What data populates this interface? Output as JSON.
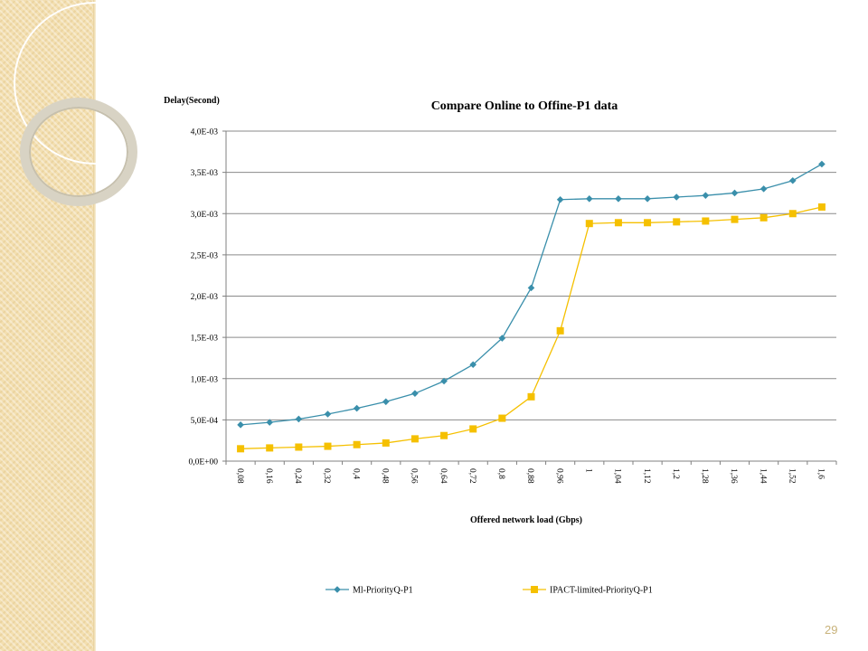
{
  "slide": {
    "page_number": "29"
  },
  "colors": {
    "series1": "#3a8fab",
    "series2": "#f5c000",
    "gridline": "#8a8a8a",
    "axis": "#808080"
  },
  "chart_data": {
    "type": "line",
    "title": "Compare Online to Offine-P1 data",
    "ylabel": "Delay(Second)",
    "xlabel": "Offered network load (Gbps)",
    "ylim": [
      0,
      0.004
    ],
    "yticks": [
      0,
      0.0005,
      0.001,
      0.0015,
      0.002,
      0.0025,
      0.003,
      0.0035,
      0.004
    ],
    "ytick_labels": [
      "0,0E+00",
      "5,0E-04",
      "1,0E-03",
      "1,5E-03",
      "2,0E-03",
      "2,5E-03",
      "3,0E-03",
      "3,5E-03",
      "4,0E-03"
    ],
    "categories": [
      "0,08",
      "0,16",
      "0,24",
      "0,32",
      "0,4",
      "0,48",
      "0,56",
      "0,64",
      "0,72",
      "0,8",
      "0,88",
      "0,96",
      "1",
      "1,04",
      "1,12",
      "1,2",
      "1,28",
      "1,36",
      "1,44",
      "1,52",
      "1,6"
    ],
    "grid": true,
    "legend_position": "bottom",
    "series": [
      {
        "name": "Ml-PriorityQ-P1",
        "marker": "diamond",
        "color": "#3a8fab",
        "values": [
          0.00044,
          0.00047,
          0.00051,
          0.00057,
          0.00064,
          0.00072,
          0.00082,
          0.00097,
          0.00117,
          0.00149,
          0.0021,
          0.00317,
          0.00318,
          0.00318,
          0.00318,
          0.0032,
          0.00322,
          0.00325,
          0.0033,
          0.0034,
          0.0036
        ]
      },
      {
        "name": "IPACT-limited-PriorityQ-P1",
        "marker": "square",
        "color": "#f5c000",
        "values": [
          0.00015,
          0.00016,
          0.00017,
          0.00018,
          0.0002,
          0.00022,
          0.00027,
          0.00031,
          0.00039,
          0.00052,
          0.00078,
          0.00158,
          0.00288,
          0.00289,
          0.00289,
          0.0029,
          0.00291,
          0.00293,
          0.00295,
          0.003,
          0.00308
        ]
      }
    ]
  }
}
